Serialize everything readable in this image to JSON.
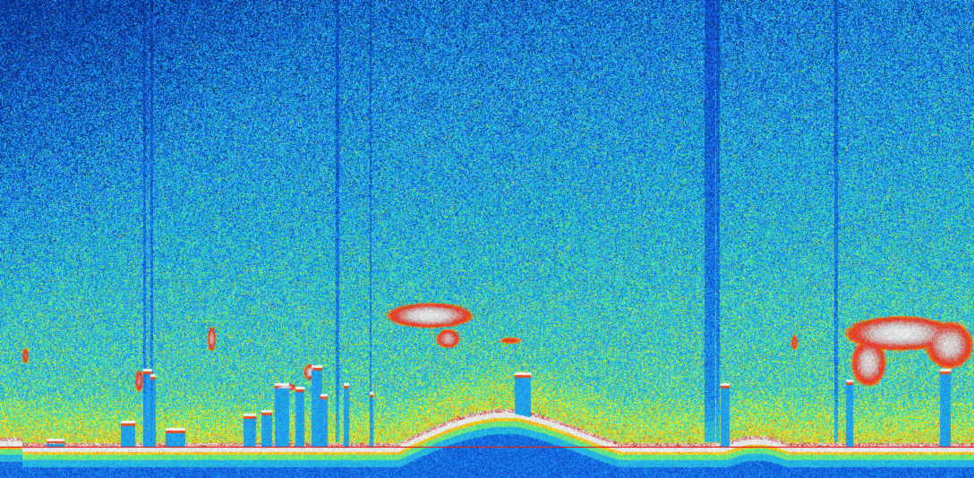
{
  "image": {
    "kind": "echogram",
    "colormap": [
      "#0a2a7a",
      "#0d4bd0",
      "#1c8ef0",
      "#27c0e0",
      "#3ee0a0",
      "#c8f040",
      "#f0e020",
      "#f08a20",
      "#e03020",
      "#c8c8c8",
      "#ffffff"
    ],
    "bottom_line_color": "#e02020",
    "text": []
  }
}
